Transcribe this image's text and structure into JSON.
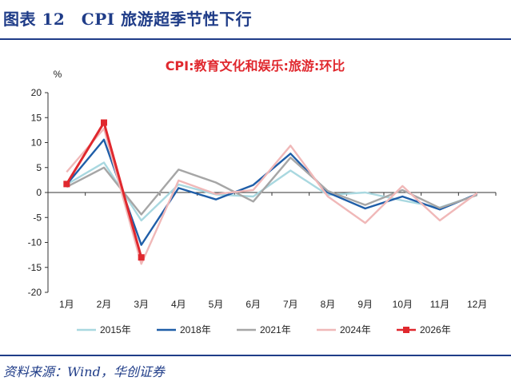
{
  "figure": {
    "title": "图表 12　CPI 旅游超季节性下行",
    "source": "资料来源：Wind，华创证券"
  },
  "chart_data": {
    "type": "line",
    "title": "CPI:教育文化和娱乐:旅游:环比",
    "ylabel": "%",
    "xlabel": "",
    "categories": [
      "1月",
      "2月",
      "3月",
      "4月",
      "5月",
      "6月",
      "7月",
      "8月",
      "9月",
      "10月",
      "11月",
      "12月"
    ],
    "ylim": [
      -20,
      20
    ],
    "yticks": [
      20,
      15,
      10,
      5,
      0,
      -5,
      -10,
      -15,
      -20
    ],
    "grid": false,
    "legend_position": "bottom",
    "series": [
      {
        "name": "2015年",
        "color": "#a9d8e0",
        "marker": "none",
        "values": [
          1.6,
          6.0,
          -5.6,
          1.6,
          -0.4,
          -0.8,
          4.4,
          -0.5,
          0.0,
          -1.6,
          -3.0,
          -0.5
        ]
      },
      {
        "name": "2018年",
        "color": "#1f5ea8",
        "marker": "none",
        "values": [
          1.6,
          10.6,
          -10.5,
          0.9,
          -1.4,
          1.5,
          7.8,
          0.0,
          -3.2,
          -0.8,
          -3.4,
          -0.3
        ]
      },
      {
        "name": "2021年",
        "color": "#a6a6a6",
        "marker": "none",
        "values": [
          1.1,
          5.0,
          -4.4,
          4.6,
          2.0,
          -1.8,
          7.0,
          0.3,
          -2.5,
          0.5,
          -3.1,
          -0.5
        ]
      },
      {
        "name": "2024年",
        "color": "#f0b8b8",
        "marker": "none",
        "values": [
          4.1,
          12.8,
          -14.3,
          2.4,
          -0.3,
          0.5,
          9.4,
          -0.8,
          -6.1,
          1.3,
          -5.6,
          -0.1
        ]
      },
      {
        "name": "2026年",
        "color": "#e0282e",
        "marker": "square",
        "values": [
          1.7,
          14.0,
          -13.0,
          null,
          null,
          null,
          null,
          null,
          null,
          null,
          null,
          null
        ]
      }
    ]
  }
}
